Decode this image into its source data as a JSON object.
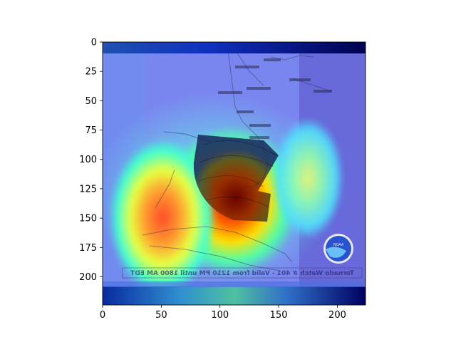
{
  "chart_data": {
    "type": "heatmap",
    "title": "",
    "xlabel": "",
    "ylabel": "",
    "xlim": [
      0,
      224
    ],
    "ylim": [
      224,
      0
    ],
    "xticks": [
      0,
      50,
      100,
      150,
      200
    ],
    "yticks": [
      0,
      25,
      50,
      75,
      100,
      125,
      150,
      175,
      200
    ],
    "colormap": "jet",
    "grid": false,
    "hotspots": [
      {
        "x": 110,
        "y": 135,
        "intensity": 1.0
      },
      {
        "x": 50,
        "y": 150,
        "intensity": 0.85
      },
      {
        "x": 175,
        "y": 115,
        "intensity": 0.55
      }
    ],
    "underlay_text": "Tornado Watch # 401  -  Valid from 1210 PM until 1800 AM EDT",
    "logo_text": "NOAA"
  }
}
